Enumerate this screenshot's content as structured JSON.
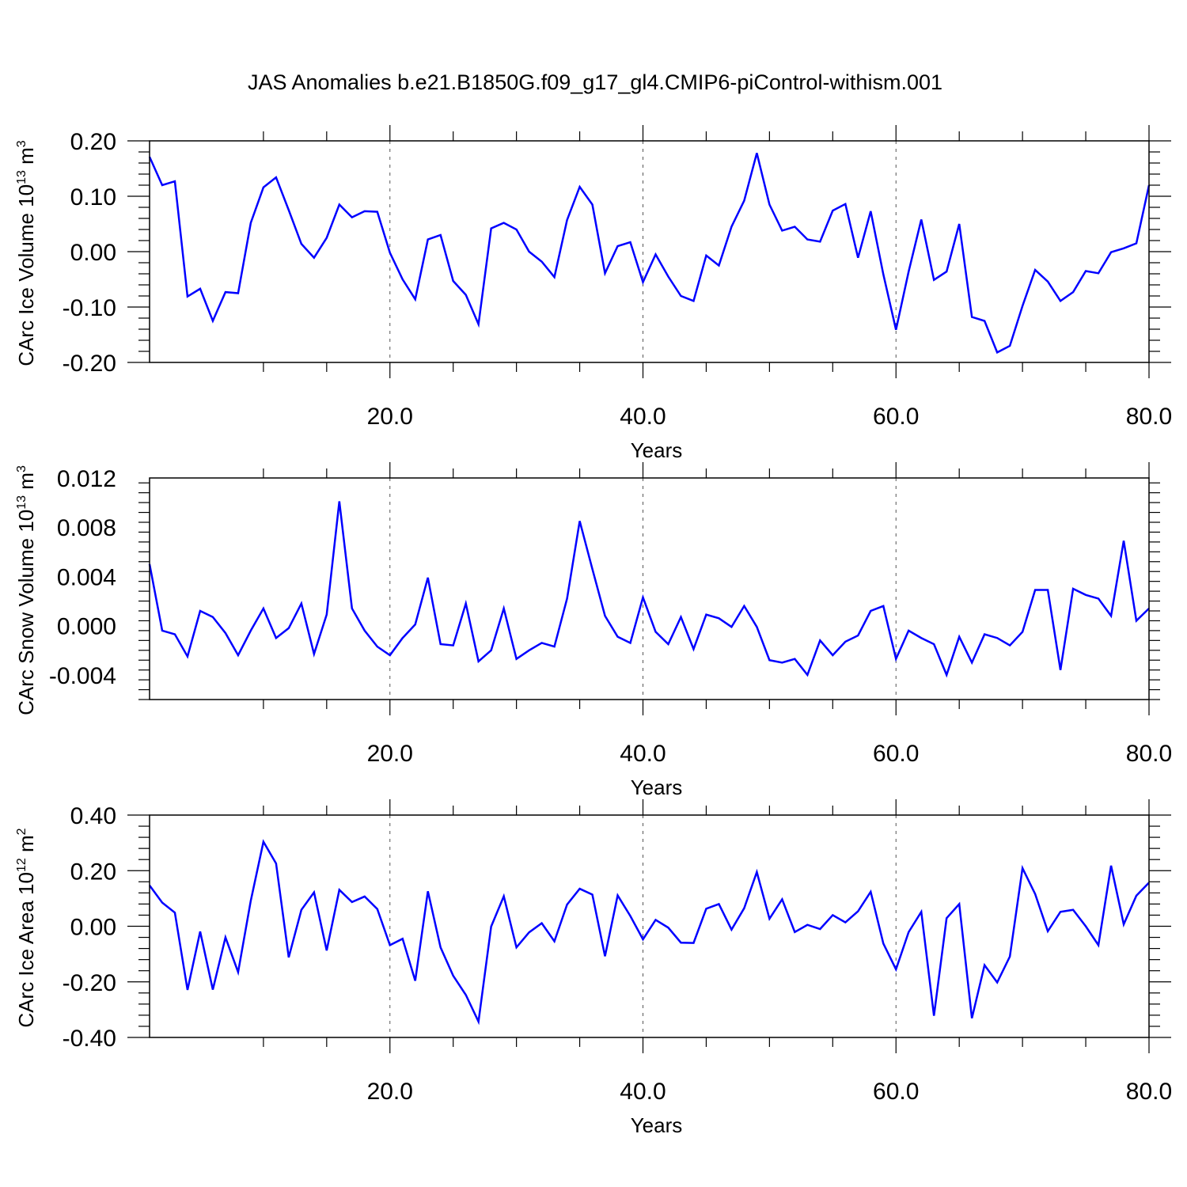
{
  "title": "JAS Anomalies b.e21.B1850G.f09_g17_gl4.CMIP6-piControl-withism.001",
  "colors": {
    "line": "#0000ff",
    "axis": "#000000",
    "grid": "#555555"
  },
  "chart_data": [
    {
      "type": "line",
      "xlabel": "Years",
      "ylabel": {
        "text": "CArc Ice Volume 10",
        "exp": "13",
        "unit": " m",
        "unit_exp": "3"
      },
      "xlim": [
        1,
        80
      ],
      "ylim": [
        -0.2,
        0.2
      ],
      "xticks": [
        20,
        40,
        60,
        80
      ],
      "xtick_labels": [
        "20.0",
        "40.0",
        "60.0",
        "80.0"
      ],
      "yticks": [
        -0.2,
        -0.1,
        0.0,
        0.1,
        0.2
      ],
      "ytick_labels": [
        "-0.20",
        "-0.10",
        "0.00",
        "0.10",
        "0.20"
      ],
      "grid": "dashed vertical at x ticks",
      "x_start": 1,
      "values": [
        0.171,
        0.12,
        0.127,
        -0.081,
        -0.067,
        -0.125,
        -0.073,
        -0.075,
        0.052,
        0.116,
        0.134,
        0.075,
        0.014,
        -0.011,
        0.025,
        0.085,
        0.062,
        0.073,
        0.072,
        -0.002,
        -0.05,
        -0.086,
        0.022,
        0.03,
        -0.053,
        -0.078,
        -0.131,
        0.042,
        0.052,
        0.04,
        0.0,
        -0.018,
        -0.046,
        0.057,
        0.117,
        0.085,
        -0.039,
        0.01,
        0.017,
        -0.055,
        -0.005,
        -0.045,
        -0.08,
        -0.089,
        -0.007,
        -0.025,
        0.045,
        0.092,
        0.178,
        0.085,
        0.038,
        0.045,
        0.022,
        0.018,
        0.074,
        0.086,
        -0.011,
        0.073,
        -0.041,
        -0.141,
        -0.036,
        0.058,
        -0.051,
        -0.036,
        0.05,
        -0.118,
        -0.125,
        -0.182,
        -0.17,
        -0.098,
        -0.033,
        -0.054,
        -0.089,
        -0.073,
        -0.035,
        -0.039,
        -0.001,
        0.006,
        0.015,
        0.12
      ]
    },
    {
      "type": "line",
      "xlabel": "Years",
      "ylabel": {
        "text": "CArc Snow Volume 10",
        "exp": "13",
        "unit": " m",
        "unit_exp": "3"
      },
      "xlim": [
        1,
        80
      ],
      "ylim": [
        -0.006,
        0.012
      ],
      "xticks": [
        20,
        40,
        60,
        80
      ],
      "xtick_labels": [
        "20.0",
        "40.0",
        "60.0",
        "80.0"
      ],
      "yticks": [
        -0.004,
        0.0,
        0.004,
        0.008,
        0.012
      ],
      "ytick_labels": [
        "-0.004",
        "0.000",
        "0.004",
        "0.008",
        "0.012"
      ],
      "grid": "dashed vertical at x ticks",
      "x_start": 1,
      "values": [
        0.005,
        -0.0004,
        -0.0007,
        -0.0025,
        0.0012,
        0.0007,
        -0.0006,
        -0.0024,
        -0.0004,
        0.0014,
        -0.001,
        -0.0002,
        0.0018,
        -0.0023,
        0.0009,
        0.0101,
        0.0014,
        -0.0004,
        -0.0017,
        -0.0024,
        -0.001,
        0.0001,
        0.0039,
        -0.0015,
        -0.0016,
        0.0018,
        -0.0029,
        -0.002,
        0.0014,
        -0.0027,
        -0.002,
        -0.0014,
        -0.0017,
        0.0022,
        0.0085,
        0.0046,
        0.0008,
        -0.0009,
        -0.0014,
        0.0023,
        -0.0005,
        -0.0015,
        0.0007,
        -0.0019,
        0.0009,
        0.0006,
        -0.0001,
        0.0016,
        -0.0001,
        -0.0028,
        -0.003,
        -0.0027,
        -0.004,
        -0.0012,
        -0.0024,
        -0.0013,
        -0.0008,
        0.0012,
        0.0016,
        -0.0027,
        -0.0004,
        -0.001,
        -0.0015,
        -0.004,
        -0.0009,
        -0.003,
        -0.0007,
        -0.001,
        -0.0016,
        -0.0005,
        0.0029,
        0.0029,
        -0.0036,
        0.003,
        0.0025,
        0.0022,
        0.0008,
        0.0069,
        0.0004,
        0.0014
      ]
    },
    {
      "type": "line",
      "xlabel": "Years",
      "ylabel": {
        "text": "CArc Ice Area 10",
        "exp": "12",
        "unit": " m",
        "unit_exp": "2"
      },
      "xlim": [
        1,
        80
      ],
      "ylim": [
        -0.4,
        0.4
      ],
      "xticks": [
        20,
        40,
        60,
        80
      ],
      "xtick_labels": [
        "20.0",
        "40.0",
        "60.0",
        "80.0"
      ],
      "yticks": [
        -0.4,
        -0.2,
        0.0,
        0.2,
        0.4
      ],
      "ytick_labels": [
        "-0.40",
        "-0.20",
        "0.00",
        "0.20",
        "0.40"
      ],
      "grid": "dashed vertical at x ticks",
      "x_start": 1,
      "values": [
        0.147,
        0.085,
        0.049,
        -0.229,
        -0.019,
        -0.228,
        -0.04,
        -0.165,
        0.092,
        0.304,
        0.226,
        -0.112,
        0.059,
        0.122,
        -0.087,
        0.131,
        0.087,
        0.107,
        0.062,
        -0.068,
        -0.045,
        -0.196,
        0.126,
        -0.076,
        -0.178,
        -0.247,
        -0.343,
        -0.001,
        0.108,
        -0.076,
        -0.022,
        0.011,
        -0.054,
        0.078,
        0.135,
        0.114,
        -0.108,
        0.111,
        0.037,
        -0.047,
        0.023,
        -0.005,
        -0.059,
        -0.06,
        0.063,
        0.08,
        -0.012,
        0.065,
        0.195,
        0.027,
        0.097,
        -0.021,
        0.005,
        -0.01,
        0.04,
        0.014,
        0.054,
        0.124,
        -0.062,
        -0.155,
        -0.021,
        0.052,
        -0.322,
        0.029,
        0.08,
        -0.331,
        -0.14,
        -0.202,
        -0.109,
        0.209,
        0.116,
        -0.018,
        0.052,
        0.059,
        0.0,
        -0.068,
        0.218,
        0.007,
        0.11,
        0.157
      ]
    }
  ]
}
